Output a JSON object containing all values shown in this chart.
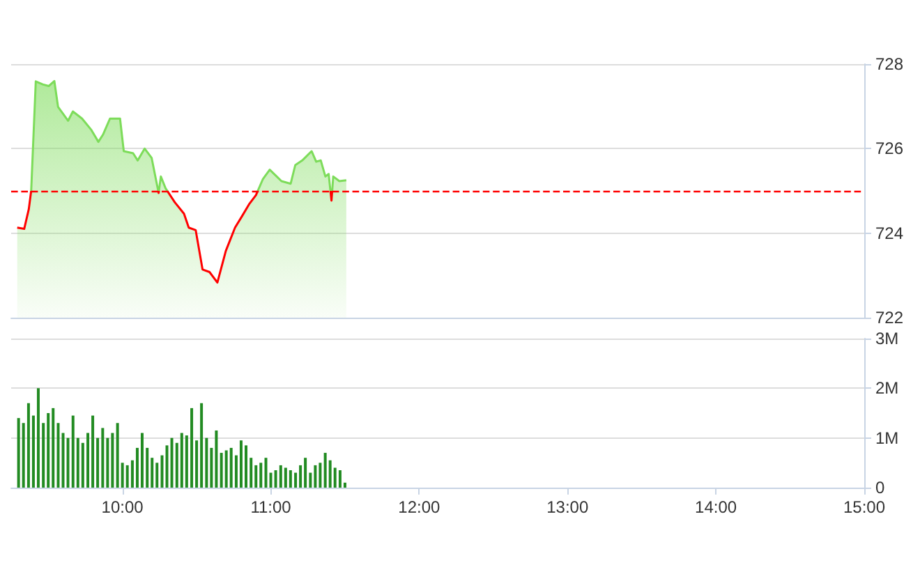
{
  "chart_data": [
    {
      "type": "area",
      "x": [
        9.291,
        9.338,
        9.369,
        9.385,
        9.416,
        9.463,
        9.503,
        9.541,
        9.566,
        9.634,
        9.666,
        9.728,
        9.791,
        9.838,
        9.869,
        9.916,
        9.984,
        10.009,
        10.072,
        10.103,
        10.15,
        10.197,
        10.244,
        10.259,
        10.291,
        10.353,
        10.415,
        10.447,
        10.494,
        10.54,
        10.587,
        10.64,
        10.697,
        10.759,
        10.806,
        10.853,
        10.9,
        10.947,
        10.993,
        11.04,
        11.072,
        11.134,
        11.165,
        11.212,
        11.275,
        11.306,
        11.337,
        11.368,
        11.39,
        11.409,
        11.421,
        11.462,
        11.509
      ],
      "series": [
        {
          "color": "#7ddc5a",
          "values": [
            724.13,
            724.1,
            724.57,
            725.0,
            727.59,
            727.52,
            727.48,
            727.6,
            726.99,
            726.66,
            726.88,
            726.71,
            726.44,
            726.16,
            726.33,
            726.71,
            726.71,
            725.94,
            725.89,
            725.72,
            726.0,
            725.78,
            724.95,
            725.34,
            725.06,
            724.73,
            724.46,
            724.13,
            724.07,
            723.14,
            723.08,
            722.83,
            723.58,
            724.13,
            724.4,
            724.68,
            724.9,
            725.28,
            725.5,
            725.34,
            725.23,
            725.17,
            725.61,
            725.72,
            725.94,
            725.69,
            725.72,
            725.34,
            725.4,
            724.77,
            725.34,
            725.23,
            725.25
          ]
        }
      ],
      "xlim": [
        9.25,
        15
      ],
      "ylim": [
        722,
        728
      ],
      "yticks": [
        722,
        724,
        726,
        728
      ],
      "grid": "y",
      "tick_labels": "y",
      "ref_lines": [
        {
          "axis": "y",
          "value": 725,
          "color": "#ff0000",
          "line_style": "dashed"
        }
      ]
    },
    {
      "type": "bar",
      "x": [
        9.3,
        9.333,
        9.367,
        9.4,
        9.433,
        9.467,
        9.5,
        9.533,
        9.567,
        9.6,
        9.633,
        9.667,
        9.7,
        9.733,
        9.767,
        9.8,
        9.833,
        9.867,
        9.9,
        9.933,
        9.967,
        10,
        10.033,
        10.067,
        10.1,
        10.133,
        10.167,
        10.2,
        10.233,
        10.267,
        10.3,
        10.333,
        10.367,
        10.4,
        10.433,
        10.467,
        10.5,
        10.533,
        10.567,
        10.6,
        10.633,
        10.667,
        10.7,
        10.733,
        10.767,
        10.8,
        10.833,
        10.867,
        10.9,
        10.933,
        10.967,
        11,
        11.033,
        11.067,
        11.1,
        11.133,
        11.167,
        11.2,
        11.233,
        11.267,
        11.3,
        11.333,
        11.367,
        11.4,
        11.433,
        11.467,
        11.5
      ],
      "values": [
        1400000,
        1300000,
        1700000,
        1450000,
        2000000,
        1300000,
        1500000,
        1600000,
        1300000,
        1100000,
        1000000,
        1450000,
        1000000,
        900000,
        1100000,
        1450000,
        1000000,
        1200000,
        1000000,
        1100000,
        1300000,
        500000,
        450000,
        550000,
        800000,
        1100000,
        800000,
        600000,
        500000,
        650000,
        850000,
        1000000,
        900000,
        1100000,
        1050000,
        1600000,
        950000,
        1700000,
        1000000,
        800000,
        1150000,
        700000,
        750000,
        800000,
        650000,
        950000,
        850000,
        600000,
        450000,
        500000,
        600000,
        300000,
        350000,
        450000,
        400000,
        350000,
        300000,
        450000,
        600000,
        300000,
        450000,
        500000,
        700000,
        550000,
        400000,
        350000,
        100000
      ],
      "color": "#228b22",
      "xlim": [
        9.25,
        15
      ],
      "xticks": [
        {
          "value": 10,
          "label": "10:00"
        },
        {
          "value": 11,
          "label": "11:00"
        },
        {
          "value": 12,
          "label": "12:00"
        },
        {
          "value": 13,
          "label": "13:00"
        },
        {
          "value": 14,
          "label": "14:00"
        },
        {
          "value": 15,
          "label": "15:00"
        }
      ],
      "ylim": [
        0,
        3000000
      ],
      "yticks": [
        0,
        {
          "value": 1000000,
          "label": "1M"
        },
        {
          "value": 2000000,
          "label": "2M"
        },
        {
          "value": 3000000,
          "label": "3M"
        }
      ],
      "grid": "y"
    }
  ]
}
